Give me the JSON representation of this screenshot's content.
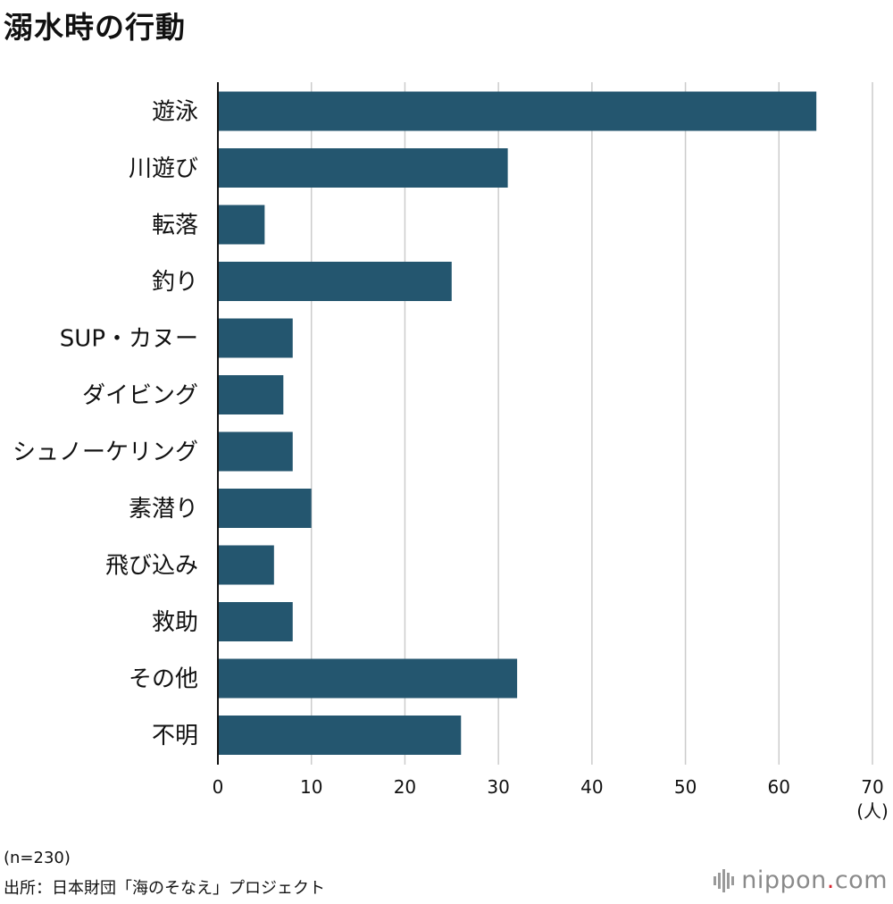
{
  "title": "溺水時の行動",
  "notes": {
    "sample": "(n=230)",
    "source": "出所：日本財団「海のそなえ」プロジェクト"
  },
  "logo": {
    "name": "nippon",
    "dot": ".",
    "suffix": "com"
  },
  "colors": {
    "bar": "#24566f",
    "grid": "#cccccc",
    "axis": "#111111",
    "logo_dot": "#d9232e"
  },
  "chart_data": {
    "type": "bar",
    "orientation": "horizontal",
    "title": "溺水時の行動",
    "categories": [
      "遊泳",
      "川遊び",
      "転落",
      "釣り",
      "SUP・カヌー",
      "ダイビング",
      "シュノーケリング",
      "素潜り",
      "飛び込み",
      "救助",
      "その他",
      "不明"
    ],
    "values": [
      64,
      31,
      5,
      25,
      8,
      7,
      8,
      10,
      6,
      8,
      32,
      26
    ],
    "xlim": [
      0,
      70
    ],
    "xticks": [
      0,
      10,
      20,
      30,
      40,
      50,
      60,
      70
    ],
    "xlabel": "(人)",
    "ylabel": "",
    "grid": true
  }
}
